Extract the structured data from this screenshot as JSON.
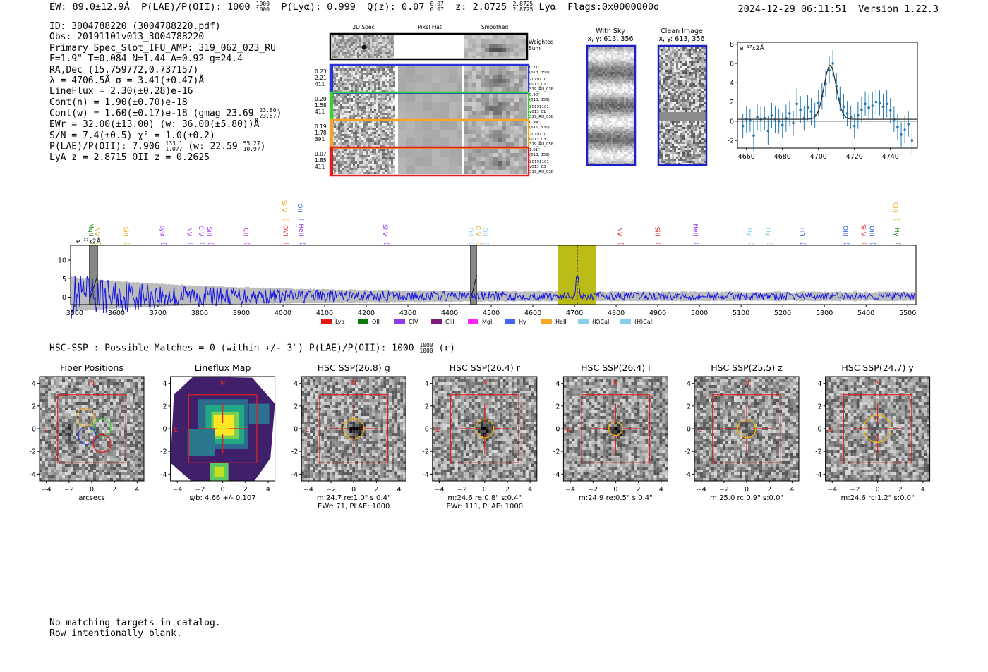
{
  "header": {
    "ew_label": "EW:",
    "ew_value": "89.0±12.9Å",
    "plae_label": "P(LAE)/P(OII):",
    "plae_value": "1000",
    "plae_hi": "1000",
    "plae_lo": "1000",
    "plya_label": "P(Lyα):",
    "plya_value": "0.999",
    "qz_label": "Q(z):",
    "qz_value": "0.07",
    "qz_hi": "0.07",
    "qz_lo": "0.07",
    "z_label": "z:",
    "z_value": "2.8725",
    "z_hi": "2.8725",
    "z_lo": "2.8725",
    "z_line": "Lyα",
    "flags": "Flags:0x0000000d",
    "datetime": "2024-12-29 06:11:51",
    "version": "Version 1.22.3"
  },
  "info": {
    "id": "ID: 3004788220 (3004788220.pdf)",
    "obs": "Obs: 20191101v013_3004788220",
    "primary": "Primary Spec_Slot_IFU_AMP: 319_062_023_RU",
    "fwhm": "F=1.9\"  T=0.084  N=1.44  A=0.92  g=24.4",
    "radec": "RA,Dec (15.759772,0.737157)",
    "lambda": "λ = 4706.5Å  σ = 3.41(±0.47)Å",
    "lineflux": "LineFlux = 2.30(±0.28)e-16",
    "contn": "Cont(n) = 1.90(±0.70)e-18",
    "contw": "Cont(w) = 1.60(±0.17)e-18 (gmag 23.69",
    "contw_hi": "23.80",
    "contw_lo": "23.57",
    "contw_close": ")",
    "ewr": "EWr = 32.00(±13.00) (w: 36.00(±5.80))Å",
    "sn": "S/N = 7.4(±0.5)  χ² = 1.0(±0.2)",
    "plae": "P(LAE)/P(OII): 7.906",
    "plae_hi": "133.1",
    "plae_lo": "1.077",
    "plae_w": " (w: 22.59",
    "plae_w_hi": "55.27",
    "plae_w_lo": "10.97",
    "plae_close": ")",
    "z": "LyA z = 2.8715  OII z = 0.2625"
  },
  "cutouts": {
    "col_2d": "2D Spec",
    "col_flat": "Pixel Flat",
    "col_smooth": "Smoothed",
    "weighted": "Weighted",
    "sum": "Sum",
    "rows": [
      {
        "w": "0.23",
        "sn": "2.21",
        "n": "411",
        "d": "0.71\"",
        "xy": "(613, 356)",
        "a": "20191101",
        "b": "v013_02",
        "c": "319_RU_03B",
        "color": "#2a33d8"
      },
      {
        "w": "0.20",
        "sn": "1.58",
        "n": "411",
        "d": "0.90\"",
        "xy": "(613, 356)",
        "a": "20191101",
        "b": "v013_01",
        "c": "319_RU_03B",
        "color": "#34d234"
      },
      {
        "w": "0.19",
        "sn": "1.78",
        "n": "391",
        "d": "0.94\"",
        "xy": "(611, 531)",
        "a": "20191101",
        "b": "v013_03",
        "c": "319_RU_05B",
        "color": "#f5a623"
      },
      {
        "w": "0.07",
        "sn": "1.85",
        "n": "411",
        "d": "1.61\"",
        "xy": "(613, 356)",
        "a": "20191101",
        "b": "v013_03",
        "c": "319_RU_03B",
        "color": "#e02020"
      }
    ],
    "with_sky": "With Sky",
    "with_sky_xy": "x, y: 613, 356",
    "clean": "Clean Image",
    "clean_xy": "x, y: 613, 356"
  },
  "chart_data": [
    {
      "type": "scatter",
      "title": "",
      "ylabel": "e⁻¹⁷x2Å",
      "xlim": [
        4655,
        4755
      ],
      "ylim": [
        -2.8,
        8.2
      ],
      "xticks": [
        "4660",
        "4680",
        "4700",
        "4720",
        "4740"
      ],
      "yticks": [
        "-2",
        "0",
        "2",
        "4",
        "6",
        "8"
      ],
      "x": [
        4658,
        4660,
        4662,
        4664,
        4666,
        4668,
        4670,
        4672,
        4674,
        4676,
        4678,
        4680,
        4682,
        4684,
        4686,
        4688,
        4690,
        4692,
        4694,
        4696,
        4698,
        4700,
        4702,
        4704,
        4706,
        4708,
        4710,
        4712,
        4714,
        4716,
        4718,
        4720,
        4722,
        4724,
        4726,
        4728,
        4730,
        4732,
        4734,
        4736,
        4738,
        4740,
        4742,
        4744,
        4746,
        4748,
        4750,
        4752
      ],
      "y": [
        -0.5,
        0.2,
        0.1,
        -1.5,
        0.4,
        0.2,
        0.3,
        -1.0,
        0.6,
        0.2,
        0.0,
        -0.4,
        0.3,
        0.8,
        -0.2,
        1.8,
        1.2,
        0.3,
        1.4,
        1.0,
        0.6,
        1.9,
        2.6,
        3.9,
        5.3,
        6.0,
        3.6,
        2.3,
        1.5,
        0.8,
        0.4,
        -0.5,
        0.6,
        1.2,
        1.8,
        1.4,
        1.6,
        2.0,
        1.9,
        1.5,
        1.8,
        1.1,
        0.2,
        -0.6,
        -1.4,
        -0.9,
        -0.3,
        -2.0
      ],
      "err": [
        1.3,
        1.4,
        1.2,
        1.6,
        1.4,
        1.3,
        1.2,
        1.5,
        1.3,
        1.4,
        1.3,
        1.3,
        1.4,
        1.3,
        1.3,
        1.6,
        1.4,
        1.3,
        1.3,
        1.4,
        1.3,
        1.3,
        1.4,
        1.4,
        1.4,
        1.4,
        1.4,
        1.3,
        1.3,
        1.3,
        1.2,
        1.3,
        1.4,
        1.3,
        1.3,
        1.3,
        1.4,
        1.3,
        1.3,
        1.3,
        1.4,
        1.3,
        1.3,
        1.3,
        1.3,
        1.4,
        1.3,
        1.4
      ],
      "fit": {
        "center": 4706.5,
        "sigma": 3.41,
        "amp": 5.6,
        "baseline": 0.2
      }
    },
    {
      "type": "line",
      "ylabel": "e⁻¹⁷x2Å",
      "xlim": [
        3490,
        5520
      ],
      "ylim": [
        -2,
        14
      ],
      "xticks": [
        "3500",
        "3600",
        "3700",
        "3800",
        "3900",
        "4000",
        "4100",
        "4200",
        "4300",
        "4400",
        "4500",
        "4600",
        "4700",
        "4800",
        "4900",
        "5000",
        "5100",
        "5200",
        "5300",
        "5400",
        "5500"
      ],
      "yticks": [
        "0",
        "5",
        "10"
      ],
      "highlight": [
        4660,
        4752
      ],
      "emission_center": 4706.5,
      "masked": [
        [
          3535,
          3555
        ],
        [
          4450,
          4465
        ]
      ],
      "line_markers": [
        {
          "name": "MgII",
          "x": 3538,
          "color": "#1a8a1a",
          "row": 0
        },
        {
          "name": "NV",
          "x": 3553,
          "color": "#d4a017",
          "row": 0
        },
        {
          "name": "SiII",
          "x": 3622,
          "color": "#f5a623",
          "row": 0
        },
        {
          "name": "Lyα",
          "x": 3710,
          "color": "#9b30ff",
          "row": 0
        },
        {
          "name": "NV",
          "x": 3775,
          "color": "#9b30ff",
          "row": 0
        },
        {
          "name": "CIV",
          "x": 3803,
          "color": "#9b30ff",
          "row": 0
        },
        {
          "name": "SiII",
          "x": 3823,
          "color": "#9b30ff",
          "row": 0
        },
        {
          "name": "CII",
          "x": 3910,
          "color": "#cc33cc",
          "row": 0
        },
        {
          "name": "SiIV",
          "x": 4003,
          "color": "#f5a623",
          "row": 1
        },
        {
          "name": "OVI",
          "x": 4005,
          "color": "#e02020",
          "row": 0
        },
        {
          "name": "OII",
          "x": 4040,
          "color": "#2a55d8",
          "row": 1
        },
        {
          "name": "HeII",
          "x": 4043,
          "color": "#8a2be2",
          "row": 0
        },
        {
          "name": "SiIV",
          "x": 4245,
          "color": "#9b30ff",
          "row": 0
        },
        {
          "name": "OII",
          "x": 4450,
          "color": "#87ceeb",
          "row": 0
        },
        {
          "name": "CIV",
          "x": 4468,
          "color": "#f5a623",
          "row": 0
        },
        {
          "name": "OII",
          "x": 4485,
          "color": "#87ceeb",
          "row": 0
        },
        {
          "name": "NV",
          "x": 4808,
          "color": "#e02020",
          "row": 0
        },
        {
          "name": "SiII",
          "x": 4898,
          "color": "#e02020",
          "row": 0
        },
        {
          "name": "HeII",
          "x": 4990,
          "color": "#8a2be2",
          "row": 0
        },
        {
          "name": "Hγ",
          "x": 5120,
          "color": "#87ceeb",
          "row": 0
        },
        {
          "name": "Hγ",
          "x": 5165,
          "color": "#87ceeb",
          "row": 0
        },
        {
          "name": "Hβ",
          "x": 5245,
          "color": "#2a55d8",
          "row": 0
        },
        {
          "name": "OIII",
          "x": 5350,
          "color": "#2a55d8",
          "row": 0
        },
        {
          "name": "SiIV",
          "x": 5393,
          "color": "#e02020",
          "row": 0
        },
        {
          "name": "OIII",
          "x": 5413,
          "color": "#2a55d8",
          "row": 0
        },
        {
          "name": "CIII",
          "x": 5470,
          "color": "#f5a623",
          "row": 1
        },
        {
          "name": "Hγ",
          "x": 5473,
          "color": "#1a8a1a",
          "row": 0
        }
      ],
      "legend": [
        {
          "name": "Lyα",
          "color": "#e51616"
        },
        {
          "name": "OII",
          "color": "#0a7a0a"
        },
        {
          "name": "CIV",
          "color": "#8a3ee8"
        },
        {
          "name": "CIII",
          "color": "#7a1d7a"
        },
        {
          "name": "MgII",
          "color": "#ff22ff"
        },
        {
          "name": "Hγ",
          "color": "#4466ee"
        },
        {
          "name": "HeII",
          "color": "#f5a623"
        },
        {
          "name": "(K)CaII",
          "color": "#87ceeb"
        },
        {
          "name": "(H)CaII",
          "color": "#87ceeb"
        }
      ]
    }
  ],
  "hsc": {
    "line": "HSC-SSP : Possible Matches = 0 (within +/- 3\")  P(LAE)/P(OII): 1000",
    "hi": "1000",
    "lo": "1000",
    "suffix": "(r)"
  },
  "panels": [
    {
      "title": "Fiber Positions",
      "cap1": "arcsecs",
      "cap2": "",
      "kind": "fibers"
    },
    {
      "title": "Lineflux Map",
      "cap1": "s/b: 4.66 +/- 0.107",
      "cap2": "",
      "kind": "lineflux"
    },
    {
      "title": "HSC SSP(26.8) g",
      "cap1": "m:24.7  re:1.0\"  s:0.4\"",
      "cap2": "EWr: 71, PLAE: 1000",
      "kind": "hsc",
      "circle_r": 0.9,
      "dark": 1.0
    },
    {
      "title": "HSC SSP(26.4) r",
      "cap1": "m:24.6  re:0.8\"  s:0.4\"",
      "cap2": "EWr: 111, PLAE: 1000",
      "kind": "hsc",
      "circle_r": 0.8,
      "dark": 1.0
    },
    {
      "title": "HSC SSP(26.4) i",
      "cap1": "m:24.9  re:0.5\"  s:0.4\"",
      "cap2": "",
      "kind": "hsc",
      "circle_r": 0.6,
      "dark": 0.7
    },
    {
      "title": "HSC SSP(25.5) z",
      "cap1": "m:25.0  rc:0.9\"  s:0.0\"",
      "cap2": "",
      "kind": "hsc",
      "circle_r": 0.8,
      "dark": 0.3
    },
    {
      "title": "HSC SSP(24.7) y",
      "cap1": "m:24.6  rc:1.2\"  s:0.0\"",
      "cap2": "",
      "kind": "hsc",
      "circle_r": 1.2,
      "dark": 0.1
    }
  ],
  "panel_axis": {
    "ticks": [
      "−4",
      "−2",
      "0",
      "2",
      "4"
    ],
    "north": "N",
    "east": "E"
  },
  "footer": {
    "line1": "No matching targets in catalog.",
    "line2": "Row intentionally blank."
  }
}
